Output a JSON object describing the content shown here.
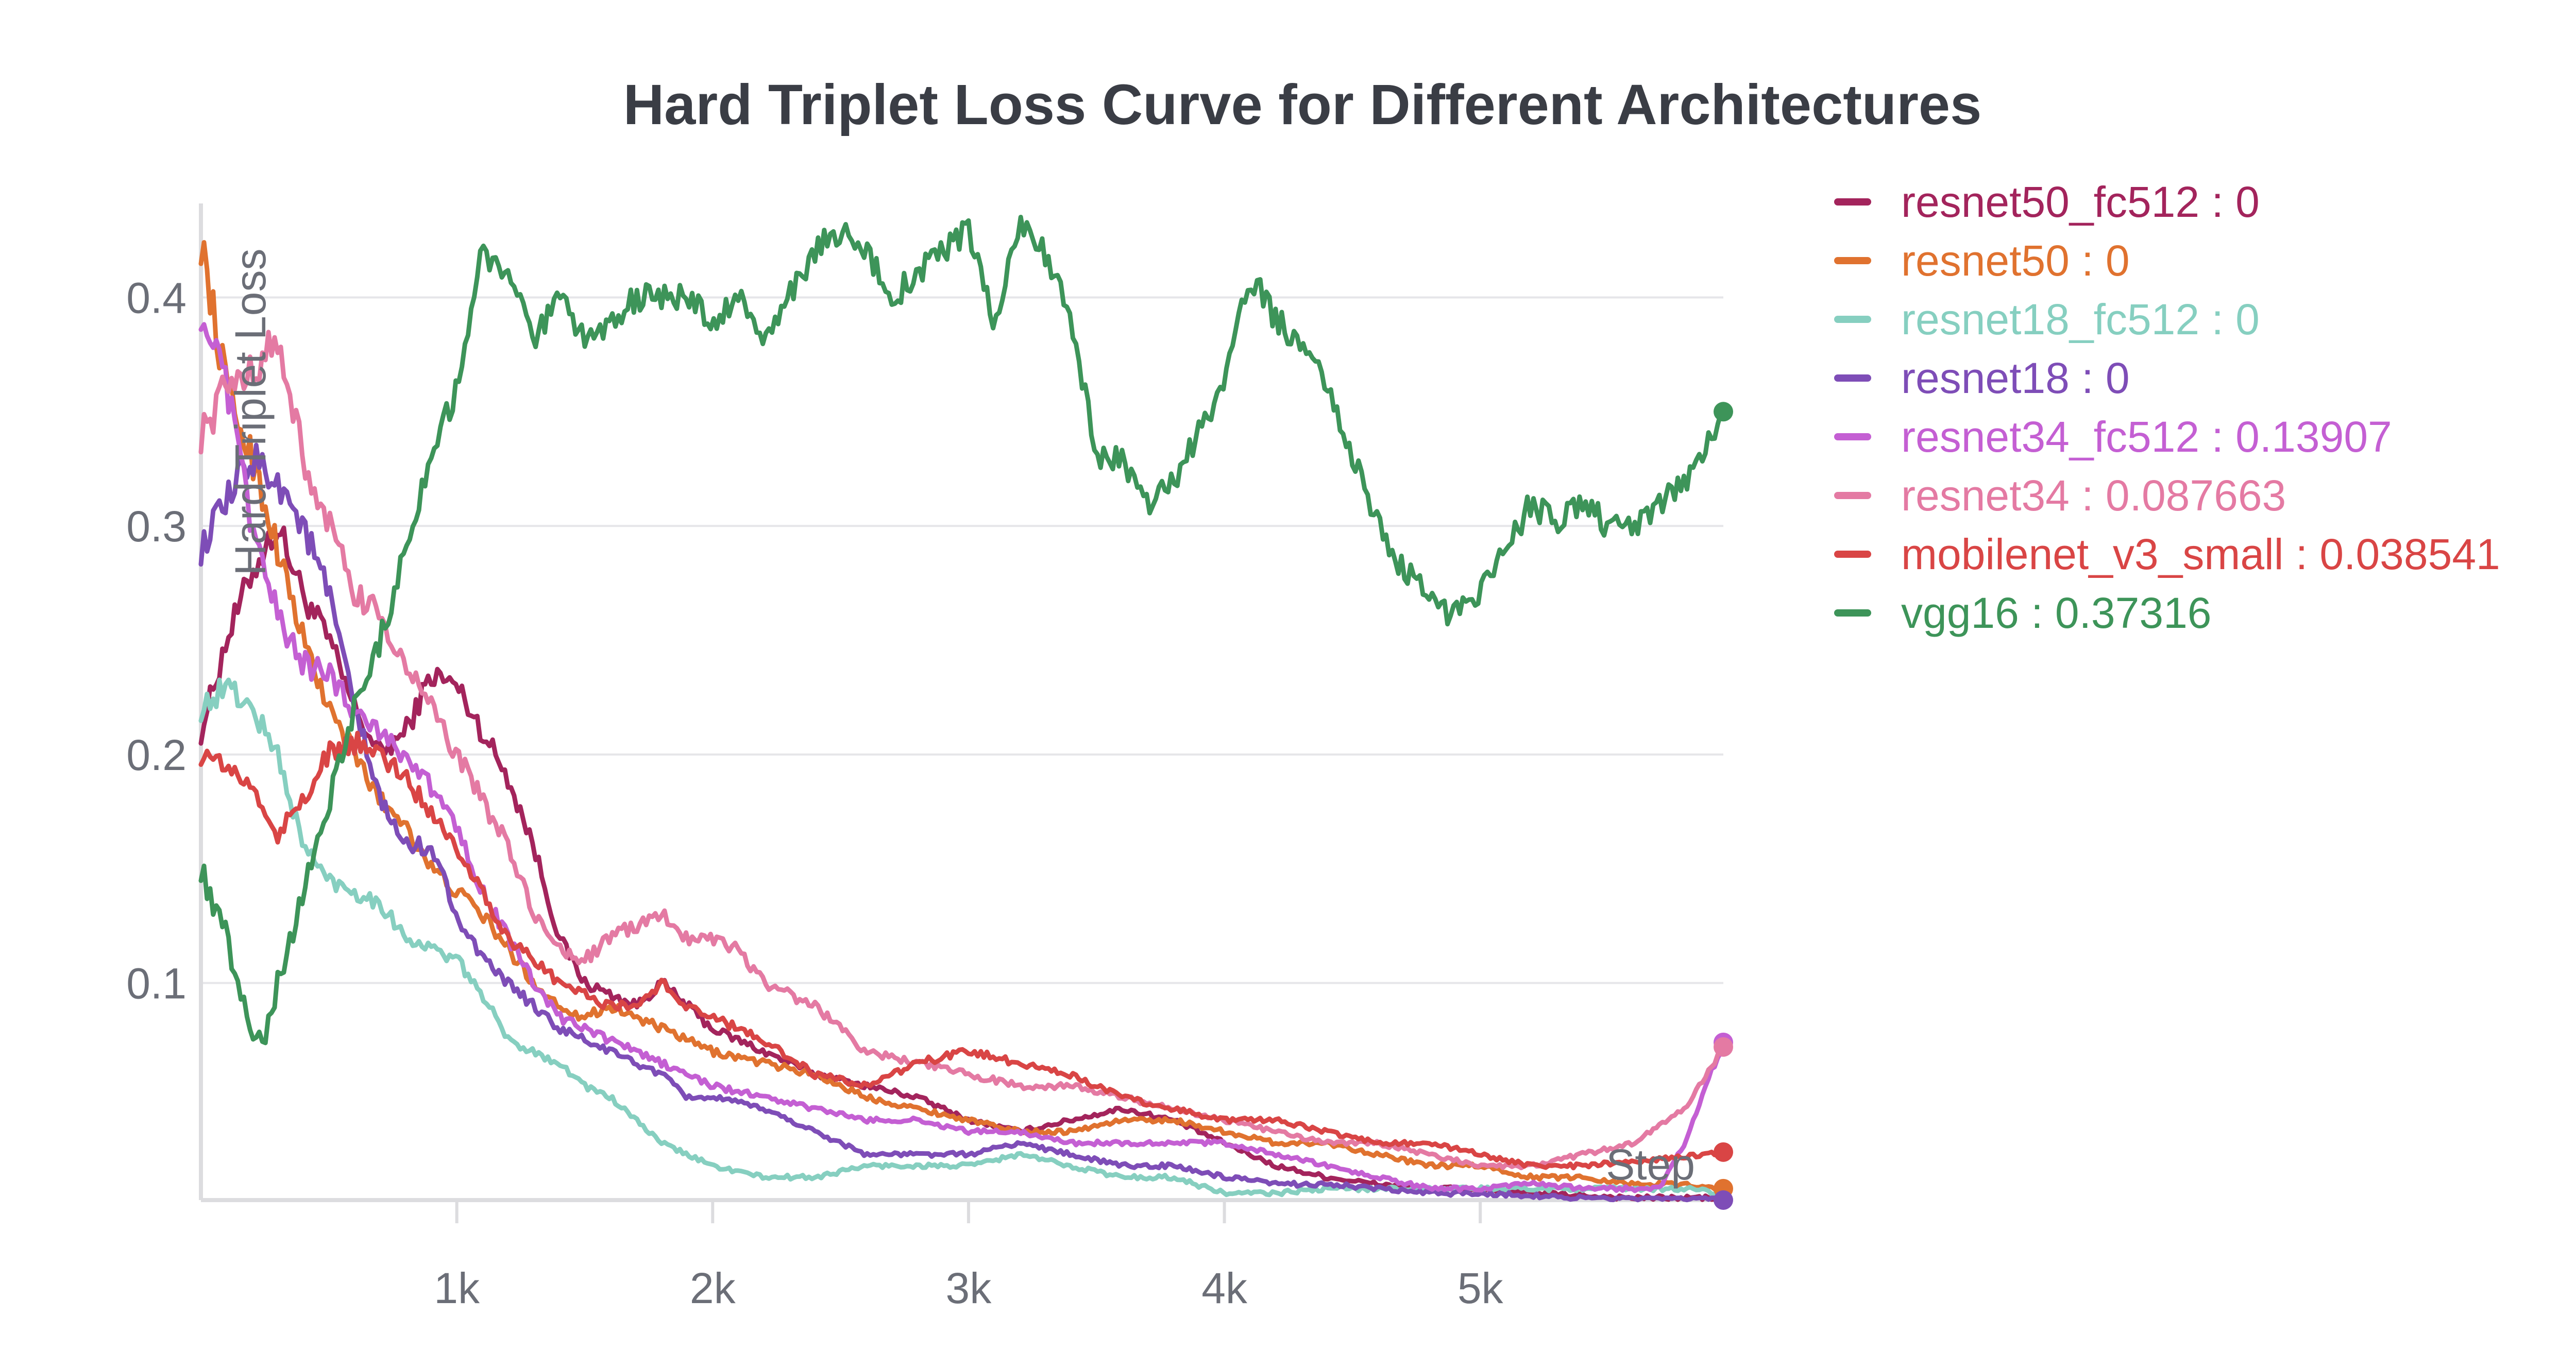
{
  "chart_data": {
    "type": "line",
    "title": "Hard Triplet Loss Curve for Different Architectures",
    "ylabel": "Hard Triplet Loss",
    "xlabel": "Step",
    "xlim": [
      0,
      5950
    ],
    "ylim": [
      0.005,
      0.44
    ],
    "xticks": [
      1000,
      2000,
      3000,
      4000,
      5000
    ],
    "xtick_labels": [
      "1k",
      "2k",
      "3k",
      "4k",
      "5k"
    ],
    "yticks": [
      0.1,
      0.2,
      0.3,
      0.4
    ],
    "ytick_labels": [
      "0.1",
      "0.2",
      "0.3",
      "0.4"
    ],
    "grid": "horizontal",
    "legend_position": "right",
    "series": [
      {
        "name": "resnet50_fc512",
        "legend_label": "resnet50_fc512 : 0",
        "color": "#a3245c",
        "x": [
          0,
          100,
          200,
          300,
          400,
          500,
          600,
          700,
          800,
          900,
          1000,
          1100,
          1200,
          1300,
          1400,
          1500,
          1600,
          1700,
          1800,
          1900,
          2000,
          2200,
          2400,
          2600,
          2800,
          3000,
          3200,
          3400,
          3600,
          3800,
          4000,
          4200,
          4400,
          4600,
          4800,
          5000,
          5200,
          5400,
          5600,
          5800,
          5950
        ],
        "y": [
          0.21,
          0.25,
          0.28,
          0.3,
          0.27,
          0.25,
          0.22,
          0.2,
          0.21,
          0.235,
          0.23,
          0.21,
          0.19,
          0.16,
          0.12,
          0.1,
          0.095,
          0.09,
          0.1,
          0.09,
          0.08,
          0.07,
          0.06,
          0.055,
          0.05,
          0.04,
          0.035,
          0.04,
          0.045,
          0.04,
          0.03,
          0.02,
          0.015,
          0.012,
          0.01,
          0.01,
          0.008,
          0.007,
          0.006,
          0.006,
          0.006
        ],
        "end_marker": false
      },
      {
        "name": "resnet50",
        "legend_label": "resnet50 : 0",
        "color": "#e0722f",
        "x": [
          0,
          100,
          200,
          300,
          400,
          500,
          600,
          700,
          800,
          900,
          1000,
          1100,
          1200,
          1300,
          1400,
          1500,
          1600,
          1700,
          1800,
          1900,
          2000,
          2200,
          2400,
          2600,
          2800,
          3000,
          3200,
          3400,
          3600,
          3800,
          4000,
          4200,
          4400,
          4600,
          4800,
          5000,
          5200,
          5400,
          5600,
          5800,
          5950
        ],
        "y": [
          0.425,
          0.36,
          0.33,
          0.29,
          0.25,
          0.22,
          0.2,
          0.18,
          0.17,
          0.15,
          0.14,
          0.13,
          0.115,
          0.1,
          0.09,
          0.085,
          0.09,
          0.085,
          0.08,
          0.075,
          0.07,
          0.065,
          0.06,
          0.05,
          0.045,
          0.04,
          0.035,
          0.035,
          0.04,
          0.04,
          0.035,
          0.03,
          0.03,
          0.025,
          0.02,
          0.02,
          0.015,
          0.015,
          0.012,
          0.012,
          0.01
        ],
        "end_marker": true
      },
      {
        "name": "resnet18_fc512",
        "legend_label": "resnet18_fc512 : 0",
        "color": "#86cfc0",
        "x": [
          0,
          100,
          200,
          300,
          400,
          500,
          600,
          700,
          800,
          900,
          1000,
          1100,
          1200,
          1300,
          1400,
          1500,
          1600,
          1700,
          1800,
          1900,
          2000,
          2200,
          2400,
          2600,
          2800,
          3000,
          3200,
          3400,
          3600,
          3800,
          4000,
          4200,
          4400,
          4600,
          4800,
          5000,
          5200,
          5400,
          5600,
          5800,
          5950
        ],
        "y": [
          0.22,
          0.23,
          0.22,
          0.2,
          0.16,
          0.145,
          0.14,
          0.135,
          0.12,
          0.115,
          0.11,
          0.095,
          0.075,
          0.07,
          0.065,
          0.055,
          0.05,
          0.04,
          0.03,
          0.025,
          0.02,
          0.015,
          0.015,
          0.02,
          0.02,
          0.02,
          0.025,
          0.02,
          0.015,
          0.015,
          0.008,
          0.008,
          0.01,
          0.01,
          0.01,
          0.01,
          0.01,
          0.01,
          0.01,
          0.01,
          0.008
        ],
        "end_marker": false
      },
      {
        "name": "resnet18",
        "legend_label": "resnet18 : 0",
        "color": "#7e4db7",
        "x": [
          0,
          100,
          200,
          300,
          400,
          500,
          600,
          700,
          800,
          900,
          1000,
          1100,
          1200,
          1300,
          1400,
          1500,
          1600,
          1700,
          1800,
          1900,
          2000,
          2200,
          2400,
          2600,
          2800,
          3000,
          3200,
          3400,
          3600,
          3800,
          4000,
          4200,
          4400,
          4600,
          4800,
          5000,
          5200,
          5400,
          5600,
          5800,
          5950
        ],
        "y": [
          0.29,
          0.31,
          0.33,
          0.32,
          0.3,
          0.27,
          0.22,
          0.18,
          0.16,
          0.16,
          0.13,
          0.11,
          0.1,
          0.09,
          0.08,
          0.075,
          0.07,
          0.065,
          0.06,
          0.05,
          0.05,
          0.045,
          0.035,
          0.025,
          0.025,
          0.025,
          0.03,
          0.025,
          0.02,
          0.02,
          0.015,
          0.012,
          0.012,
          0.01,
          0.008,
          0.008,
          0.007,
          0.006,
          0.005,
          0.005,
          0.005
        ],
        "end_marker": true
      },
      {
        "name": "resnet34_fc512",
        "legend_label": "resnet34_fc512 : 0.13907",
        "color": "#c45fd3",
        "x": [
          0,
          100,
          200,
          300,
          400,
          500,
          600,
          700,
          800,
          900,
          1000,
          1100,
          1200,
          1300,
          1400,
          1500,
          1600,
          1700,
          1800,
          1900,
          2000,
          2200,
          2400,
          2600,
          2800,
          3000,
          3200,
          3400,
          3600,
          3800,
          4000,
          4200,
          4400,
          4600,
          4800,
          5000,
          5200,
          5400,
          5600,
          5700,
          5800,
          5900,
          5950
        ],
        "y": [
          0.395,
          0.36,
          0.3,
          0.26,
          0.24,
          0.235,
          0.22,
          0.21,
          0.2,
          0.185,
          0.17,
          0.14,
          0.12,
          0.1,
          0.085,
          0.08,
          0.075,
          0.07,
          0.065,
          0.06,
          0.055,
          0.05,
          0.045,
          0.04,
          0.04,
          0.035,
          0.035,
          0.03,
          0.03,
          0.03,
          0.03,
          0.025,
          0.02,
          0.015,
          0.01,
          0.01,
          0.012,
          0.01,
          0.01,
          0.01,
          0.03,
          0.06,
          0.074
        ],
        "end_marker": true
      },
      {
        "name": "resnet34",
        "legend_label": "resnet34 : 0.087663",
        "color": "#e47aa3",
        "x": [
          0,
          100,
          200,
          300,
          400,
          500,
          600,
          700,
          800,
          900,
          1000,
          1100,
          1200,
          1300,
          1400,
          1500,
          1600,
          1700,
          1800,
          1900,
          2000,
          2100,
          2200,
          2400,
          2600,
          2800,
          3000,
          3200,
          3400,
          3600,
          3800,
          4000,
          4200,
          4400,
          4600,
          4800,
          5000,
          5200,
          5400,
          5600,
          5800,
          5950
        ],
        "y": [
          0.34,
          0.36,
          0.37,
          0.38,
          0.33,
          0.3,
          0.27,
          0.26,
          0.24,
          0.22,
          0.2,
          0.18,
          0.16,
          0.13,
          0.115,
          0.11,
          0.12,
          0.125,
          0.13,
          0.12,
          0.12,
          0.115,
          0.1,
          0.09,
          0.07,
          0.065,
          0.06,
          0.055,
          0.055,
          0.05,
          0.045,
          0.04,
          0.035,
          0.03,
          0.03,
          0.025,
          0.02,
          0.02,
          0.025,
          0.03,
          0.045,
          0.072
        ],
        "end_marker": true
      },
      {
        "name": "mobilenet_v3_small",
        "legend_label": "mobilenet_v3_small : 0.038541",
        "color": "#d94545",
        "x": [
          0,
          100,
          200,
          300,
          400,
          500,
          600,
          700,
          800,
          900,
          1000,
          1100,
          1200,
          1300,
          1400,
          1500,
          1600,
          1700,
          1800,
          1900,
          2000,
          2200,
          2400,
          2600,
          2800,
          3000,
          3200,
          3400,
          3600,
          3800,
          4000,
          4200,
          4400,
          4600,
          4800,
          5000,
          5200,
          5400,
          5600,
          5800,
          5950
        ],
        "y": [
          0.2,
          0.195,
          0.185,
          0.165,
          0.18,
          0.2,
          0.205,
          0.2,
          0.19,
          0.175,
          0.16,
          0.14,
          0.12,
          0.11,
          0.1,
          0.095,
          0.09,
          0.09,
          0.1,
          0.09,
          0.085,
          0.075,
          0.06,
          0.055,
          0.065,
          0.07,
          0.065,
          0.06,
          0.05,
          0.045,
          0.04,
          0.04,
          0.035,
          0.03,
          0.03,
          0.025,
          0.02,
          0.02,
          0.022,
          0.024,
          0.026
        ],
        "end_marker": true
      },
      {
        "name": "vgg16",
        "legend_label": "vgg16 : 0.37316",
        "color": "#3d9459",
        "x": [
          0,
          100,
          200,
          250,
          300,
          400,
          500,
          600,
          700,
          800,
          900,
          1000,
          1100,
          1200,
          1300,
          1400,
          1500,
          1600,
          1700,
          1800,
          1900,
          2000,
          2100,
          2200,
          2300,
          2400,
          2500,
          2600,
          2700,
          2800,
          2900,
          3000,
          3100,
          3200,
          3300,
          3400,
          3500,
          3600,
          3700,
          3800,
          3900,
          4000,
          4100,
          4200,
          4300,
          4400,
          4500,
          4600,
          4700,
          4800,
          4900,
          5000,
          5100,
          5200,
          5300,
          5400,
          5500,
          5600,
          5700,
          5800,
          5900,
          5950
        ],
        "y": [
          0.15,
          0.12,
          0.08,
          0.075,
          0.1,
          0.14,
          0.18,
          0.22,
          0.25,
          0.29,
          0.33,
          0.36,
          0.42,
          0.41,
          0.38,
          0.4,
          0.38,
          0.39,
          0.4,
          0.4,
          0.4,
          0.39,
          0.4,
          0.38,
          0.4,
          0.42,
          0.43,
          0.42,
          0.4,
          0.41,
          0.42,
          0.43,
          0.39,
          0.43,
          0.42,
          0.39,
          0.33,
          0.33,
          0.31,
          0.32,
          0.34,
          0.36,
          0.41,
          0.39,
          0.38,
          0.36,
          0.33,
          0.3,
          0.28,
          0.27,
          0.26,
          0.27,
          0.29,
          0.31,
          0.3,
          0.31,
          0.3,
          0.3,
          0.31,
          0.32,
          0.34,
          0.35
        ],
        "end_marker": true
      }
    ]
  }
}
